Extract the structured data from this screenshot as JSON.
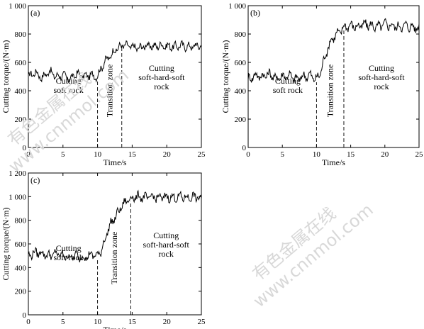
{
  "chart_data": [
    {
      "type": "line",
      "panel": "(a)",
      "xlabel": "Time/s",
      "ylabel": "Cutting torque/(N·m)",
      "xlim": [
        0,
        25
      ],
      "ylim": [
        0,
        1000
      ],
      "x_ticks": [
        "0",
        "5",
        "10",
        "15",
        "20",
        "25"
      ],
      "y_ticks": [
        "0",
        "200",
        "400",
        "600",
        "800",
        "1 000"
      ],
      "boundaries": [
        10,
        13.5
      ],
      "annotations": {
        "left": [
          "Cutting",
          "soft rock"
        ],
        "middle": "Transition zone",
        "right": [
          "Cutting",
          "soft-hard-soft",
          "rock"
        ]
      },
      "series": [
        {
          "x": [
            0,
            1,
            2,
            3,
            4,
            5,
            6,
            7,
            8,
            9,
            10,
            10.5,
            11,
            11.5,
            12,
            12.5,
            13,
            13.5,
            14,
            15,
            16,
            17,
            18,
            19,
            20,
            21,
            22,
            23,
            24,
            25
          ],
          "values": [
            500,
            530,
            490,
            540,
            500,
            510,
            480,
            520,
            500,
            510,
            500,
            560,
            600,
            630,
            650,
            690,
            700,
            720,
            720,
            710,
            700,
            720,
            710,
            720,
            715,
            710,
            720,
            710,
            715,
            720
          ]
        }
      ]
    },
    {
      "type": "line",
      "panel": "(b)",
      "xlabel": "Time/s",
      "ylabel": "Cutting torque/(N·m)",
      "xlim": [
        0,
        25
      ],
      "ylim": [
        0,
        1000
      ],
      "x_ticks": [
        "0",
        "5",
        "10",
        "15",
        "20",
        "25"
      ],
      "y_ticks": [
        "0",
        "200",
        "400",
        "600",
        "800",
        "1 000"
      ],
      "boundaries": [
        10,
        14
      ],
      "annotations": {
        "left": [
          "Cutting",
          "soft rock"
        ],
        "middle": "Transition zone",
        "right": [
          "Cutting",
          "soft-hard-soft",
          "rock"
        ]
      },
      "series": [
        {
          "x": [
            0,
            1,
            2,
            3,
            4,
            5,
            6,
            7,
            8,
            9,
            10,
            10.5,
            11,
            11.5,
            12,
            12.5,
            13,
            13.5,
            14,
            15,
            16,
            17,
            18,
            19,
            20,
            21,
            22,
            23,
            24,
            25
          ],
          "values": [
            480,
            510,
            500,
            520,
            490,
            500,
            510,
            480,
            500,
            510,
            480,
            520,
            600,
            680,
            740,
            780,
            800,
            820,
            850,
            860,
            850,
            870,
            860,
            850,
            870,
            860,
            850,
            860,
            850,
            840
          ]
        }
      ]
    },
    {
      "type": "line",
      "panel": "(c)",
      "xlabel": "Time/s",
      "ylabel": "Cutting torque/(N·m)",
      "xlim": [
        0,
        25
      ],
      "ylim": [
        0,
        1200
      ],
      "x_ticks": [
        "0",
        "5",
        "10",
        "15",
        "20",
        "25"
      ],
      "y_ticks": [
        "0",
        "200",
        "400",
        "600",
        "800",
        "1 000",
        "1 200"
      ],
      "boundaries": [
        10,
        14.8
      ],
      "annotations": {
        "left": [
          "Cutting",
          "soft rock"
        ],
        "middle": "Transition zone",
        "right": [
          "Cutting",
          "soft-hard-soft",
          "rock"
        ]
      },
      "series": [
        {
          "x": [
            0,
            1,
            2,
            3,
            4,
            5,
            6,
            7,
            8,
            9,
            10,
            10.5,
            11,
            11.5,
            12,
            12.5,
            13,
            13.5,
            14,
            14.5,
            15,
            16,
            17,
            18,
            19,
            20,
            21,
            22,
            23,
            24,
            25
          ],
          "values": [
            500,
            530,
            520,
            500,
            520,
            500,
            490,
            500,
            480,
            510,
            500,
            540,
            620,
            720,
            780,
            820,
            870,
            920,
            950,
            980,
            990,
            1000,
            990,
            1000,
            990,
            1000,
            990,
            1000,
            990,
            1000,
            980
          ]
        }
      ]
    }
  ],
  "watermark": {
    "cn": "有色金属在线",
    "url": "www.cnnmol.com"
  },
  "colors": {
    "line": "#000000",
    "axis": "#000000",
    "boundary": "#000000",
    "watermark": "#d8d8d8"
  }
}
